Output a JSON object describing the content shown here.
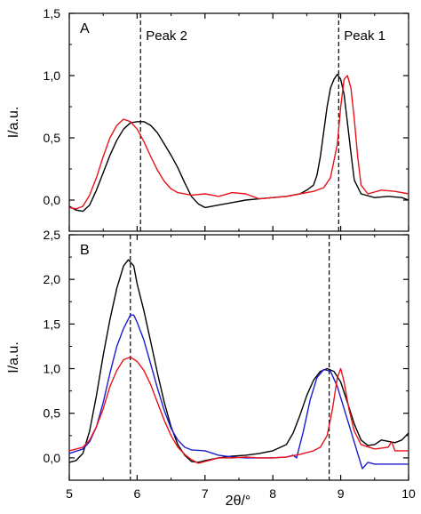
{
  "chart_data": [
    {
      "panel": "A",
      "type": "line",
      "panel_label": "A",
      "xlabel": "2θ/°",
      "ylabel": "I/a.u.",
      "xlim": [
        5,
        10
      ],
      "ylim": [
        -0.25,
        1.5
      ],
      "grid": false,
      "x_ticks": [
        5,
        6,
        7,
        8,
        9,
        10
      ],
      "x_tick_labels": [
        "5",
        "6",
        "7",
        "8",
        "9",
        "10"
      ],
      "y_ticks": [
        0.0,
        0.5,
        1.0,
        1.5
      ],
      "y_tick_labels": [
        "0,0",
        "0,5",
        "1,0",
        "1,5"
      ],
      "annotations": [
        {
          "text": "Peak 2",
          "x": 6.05
        },
        {
          "text": "Peak 1",
          "x": 8.97
        }
      ],
      "series": [
        {
          "color": "#000000",
          "points": [
            [
              5.0,
              -0.05
            ],
            [
              5.1,
              -0.08
            ],
            [
              5.2,
              -0.09
            ],
            [
              5.3,
              -0.04
            ],
            [
              5.4,
              0.08
            ],
            [
              5.5,
              0.22
            ],
            [
              5.6,
              0.36
            ],
            [
              5.7,
              0.48
            ],
            [
              5.8,
              0.57
            ],
            [
              5.9,
              0.62
            ],
            [
              6.0,
              0.63
            ],
            [
              6.1,
              0.63
            ],
            [
              6.2,
              0.6
            ],
            [
              6.3,
              0.54
            ],
            [
              6.4,
              0.45
            ],
            [
              6.5,
              0.36
            ],
            [
              6.6,
              0.26
            ],
            [
              6.7,
              0.14
            ],
            [
              6.8,
              0.03
            ],
            [
              6.9,
              -0.03
            ],
            [
              7.0,
              -0.06
            ],
            [
              7.2,
              -0.04
            ],
            [
              7.4,
              -0.02
            ],
            [
              7.6,
              0.0
            ],
            [
              7.8,
              0.01
            ],
            [
              8.0,
              0.02
            ],
            [
              8.2,
              0.03
            ],
            [
              8.4,
              0.05
            ],
            [
              8.5,
              0.08
            ],
            [
              8.6,
              0.12
            ],
            [
              8.65,
              0.2
            ],
            [
              8.7,
              0.35
            ],
            [
              8.75,
              0.55
            ],
            [
              8.8,
              0.75
            ],
            [
              8.85,
              0.9
            ],
            [
              8.9,
              0.97
            ],
            [
              8.95,
              1.01
            ],
            [
              9.0,
              0.97
            ],
            [
              9.05,
              0.85
            ],
            [
              9.1,
              0.62
            ],
            [
              9.15,
              0.38
            ],
            [
              9.2,
              0.16
            ],
            [
              9.3,
              0.05
            ],
            [
              9.5,
              0.02
            ],
            [
              9.7,
              0.03
            ],
            [
              9.9,
              0.02
            ],
            [
              10.0,
              0.0
            ]
          ]
        },
        {
          "color": "#e8131b",
          "points": [
            [
              5.0,
              -0.06
            ],
            [
              5.1,
              -0.07
            ],
            [
              5.2,
              -0.05
            ],
            [
              5.3,
              0.04
            ],
            [
              5.4,
              0.18
            ],
            [
              5.5,
              0.35
            ],
            [
              5.6,
              0.5
            ],
            [
              5.7,
              0.6
            ],
            [
              5.8,
              0.65
            ],
            [
              5.9,
              0.63
            ],
            [
              6.0,
              0.57
            ],
            [
              6.1,
              0.47
            ],
            [
              6.2,
              0.35
            ],
            [
              6.3,
              0.24
            ],
            [
              6.4,
              0.15
            ],
            [
              6.5,
              0.09
            ],
            [
              6.6,
              0.06
            ],
            [
              6.8,
              0.04
            ],
            [
              7.0,
              0.05
            ],
            [
              7.2,
              0.03
            ],
            [
              7.4,
              0.06
            ],
            [
              7.6,
              0.05
            ],
            [
              7.8,
              0.01
            ],
            [
              8.0,
              0.02
            ],
            [
              8.2,
              0.03
            ],
            [
              8.4,
              0.05
            ],
            [
              8.6,
              0.07
            ],
            [
              8.75,
              0.1
            ],
            [
              8.85,
              0.18
            ],
            [
              8.95,
              0.45
            ],
            [
              9.0,
              0.75
            ],
            [
              9.05,
              0.97
            ],
            [
              9.1,
              1.0
            ],
            [
              9.15,
              0.9
            ],
            [
              9.2,
              0.65
            ],
            [
              9.25,
              0.35
            ],
            [
              9.3,
              0.12
            ],
            [
              9.4,
              0.05
            ],
            [
              9.6,
              0.08
            ],
            [
              9.8,
              0.07
            ],
            [
              10.0,
              0.05
            ]
          ]
        }
      ],
      "vlines": [
        6.05,
        8.97
      ]
    },
    {
      "panel": "B",
      "type": "line",
      "panel_label": "B",
      "xlabel": "2θ/°",
      "ylabel": "I/a.u.",
      "xlim": [
        5,
        10
      ],
      "ylim": [
        -0.25,
        2.5
      ],
      "grid": false,
      "x_ticks": [
        5,
        6,
        7,
        8,
        9,
        10
      ],
      "x_tick_labels": [
        "5",
        "6",
        "7",
        "8",
        "9",
        "10"
      ],
      "y_ticks": [
        0.0,
        0.5,
        1.0,
        1.5,
        2.0,
        2.5
      ],
      "y_tick_labels": [
        "0,0",
        "0,5",
        "1,0",
        "1,5",
        "2,0",
        "2,5"
      ],
      "series": [
        {
          "color": "#000000",
          "points": [
            [
              5.0,
              -0.05
            ],
            [
              5.1,
              -0.03
            ],
            [
              5.2,
              0.05
            ],
            [
              5.3,
              0.3
            ],
            [
              5.4,
              0.7
            ],
            [
              5.5,
              1.15
            ],
            [
              5.6,
              1.55
            ],
            [
              5.7,
              1.9
            ],
            [
              5.8,
              2.15
            ],
            [
              5.87,
              2.22
            ],
            [
              5.95,
              2.15
            ],
            [
              6.0,
              1.95
            ],
            [
              6.1,
              1.65
            ],
            [
              6.2,
              1.3
            ],
            [
              6.3,
              0.95
            ],
            [
              6.4,
              0.62
            ],
            [
              6.5,
              0.35
            ],
            [
              6.6,
              0.15
            ],
            [
              6.7,
              0.03
            ],
            [
              6.8,
              -0.04
            ],
            [
              6.9,
              -0.05
            ],
            [
              7.0,
              -0.03
            ],
            [
              7.2,
              0.0
            ],
            [
              7.4,
              0.02
            ],
            [
              7.6,
              0.03
            ],
            [
              7.8,
              0.05
            ],
            [
              8.0,
              0.08
            ],
            [
              8.2,
              0.15
            ],
            [
              8.3,
              0.28
            ],
            [
              8.4,
              0.48
            ],
            [
              8.5,
              0.7
            ],
            [
              8.6,
              0.87
            ],
            [
              8.7,
              0.97
            ],
            [
              8.8,
              1.0
            ],
            [
              8.9,
              0.97
            ],
            [
              9.0,
              0.85
            ],
            [
              9.1,
              0.62
            ],
            [
              9.2,
              0.38
            ],
            [
              9.3,
              0.2
            ],
            [
              9.4,
              0.14
            ],
            [
              9.5,
              0.15
            ],
            [
              9.6,
              0.2
            ],
            [
              9.8,
              0.17
            ],
            [
              9.9,
              0.2
            ],
            [
              10.0,
              0.28
            ]
          ]
        },
        {
          "color": "#1c1ccf",
          "points": [
            [
              5.0,
              0.05
            ],
            [
              5.2,
              0.1
            ],
            [
              5.3,
              0.18
            ],
            [
              5.4,
              0.35
            ],
            [
              5.5,
              0.62
            ],
            [
              5.6,
              0.95
            ],
            [
              5.7,
              1.25
            ],
            [
              5.8,
              1.45
            ],
            [
              5.9,
              1.6
            ],
            [
              5.95,
              1.6
            ],
            [
              6.0,
              1.52
            ],
            [
              6.1,
              1.32
            ],
            [
              6.2,
              1.05
            ],
            [
              6.3,
              0.78
            ],
            [
              6.4,
              0.53
            ],
            [
              6.5,
              0.33
            ],
            [
              6.6,
              0.2
            ],
            [
              6.7,
              0.12
            ],
            [
              6.8,
              0.09
            ],
            [
              7.0,
              0.08
            ],
            [
              7.2,
              0.03
            ],
            [
              7.4,
              0.01
            ],
            [
              7.6,
              0.0
            ],
            [
              7.8,
              0.0
            ],
            [
              8.0,
              0.0
            ],
            [
              8.2,
              0.01
            ],
            [
              8.3,
              0.03
            ],
            [
              8.35,
              0.0
            ],
            [
              8.45,
              0.3
            ],
            [
              8.55,
              0.65
            ],
            [
              8.65,
              0.9
            ],
            [
              8.75,
              0.99
            ],
            [
              8.85,
              0.97
            ],
            [
              8.95,
              0.8
            ],
            [
              9.05,
              0.55
            ],
            [
              9.15,
              0.3
            ],
            [
              9.25,
              0.05
            ],
            [
              9.32,
              -0.12
            ],
            [
              9.4,
              -0.05
            ],
            [
              9.5,
              -0.07
            ],
            [
              9.7,
              -0.07
            ],
            [
              10.0,
              -0.07
            ]
          ]
        },
        {
          "color": "#e8131b",
          "points": [
            [
              5.0,
              0.08
            ],
            [
              5.2,
              0.12
            ],
            [
              5.3,
              0.2
            ],
            [
              5.4,
              0.35
            ],
            [
              5.5,
              0.55
            ],
            [
              5.6,
              0.8
            ],
            [
              5.7,
              0.98
            ],
            [
              5.8,
              1.1
            ],
            [
              5.9,
              1.13
            ],
            [
              6.0,
              1.08
            ],
            [
              6.1,
              0.98
            ],
            [
              6.2,
              0.82
            ],
            [
              6.3,
              0.62
            ],
            [
              6.4,
              0.42
            ],
            [
              6.5,
              0.25
            ],
            [
              6.6,
              0.12
            ],
            [
              6.7,
              0.04
            ],
            [
              6.8,
              -0.02
            ],
            [
              6.9,
              -0.06
            ],
            [
              7.0,
              -0.04
            ],
            [
              7.2,
              0.0
            ],
            [
              7.4,
              0.0
            ],
            [
              7.6,
              0.01
            ],
            [
              7.8,
              0.0
            ],
            [
              8.0,
              0.0
            ],
            [
              8.2,
              0.01
            ],
            [
              8.4,
              0.04
            ],
            [
              8.6,
              0.08
            ],
            [
              8.7,
              0.12
            ],
            [
              8.8,
              0.25
            ],
            [
              8.88,
              0.55
            ],
            [
              8.95,
              0.9
            ],
            [
              9.0,
              1.0
            ],
            [
              9.05,
              0.85
            ],
            [
              9.12,
              0.55
            ],
            [
              9.2,
              0.3
            ],
            [
              9.3,
              0.15
            ],
            [
              9.5,
              0.1
            ],
            [
              9.7,
              0.12
            ],
            [
              9.75,
              0.18
            ],
            [
              9.8,
              0.08
            ],
            [
              10.0,
              0.08
            ]
          ]
        }
      ],
      "vlines": [
        5.9,
        8.83
      ]
    }
  ]
}
